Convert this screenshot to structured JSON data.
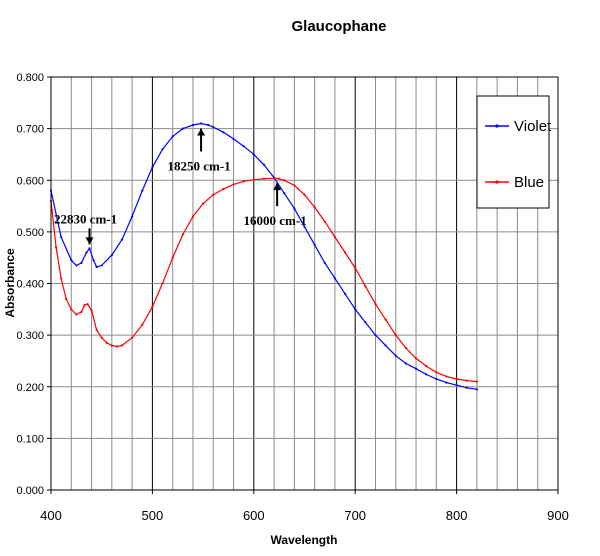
{
  "chart_data": {
    "type": "line",
    "title": "Glaucophane",
    "xlabel": "Wavelength",
    "ylabel": "Absorbance",
    "xlim": [
      400,
      900
    ],
    "ylim": [
      0,
      0.8
    ],
    "x_ticks": [
      "400",
      "500",
      "600",
      "700",
      "800",
      "900"
    ],
    "y_ticks": [
      "0.000",
      "0.100",
      "0.200",
      "0.300",
      "0.400",
      "0.500",
      "0.600",
      "0.700",
      "0.800"
    ],
    "grid": true,
    "legend_position": "top-right",
    "series": [
      {
        "name": "Violet",
        "color": "#0000ff",
        "x": [
          400,
          410,
          420,
          425,
          430,
          435,
          438,
          442,
          445,
          450,
          460,
          470,
          480,
          490,
          500,
          510,
          520,
          530,
          540,
          548,
          555,
          560,
          570,
          580,
          590,
          600,
          610,
          620,
          630,
          640,
          650,
          660,
          670,
          680,
          690,
          700,
          710,
          720,
          730,
          740,
          750,
          760,
          770,
          780,
          790,
          800,
          810,
          820
        ],
        "y": [
          0.58,
          0.49,
          0.445,
          0.435,
          0.44,
          0.46,
          0.468,
          0.445,
          0.432,
          0.435,
          0.455,
          0.485,
          0.53,
          0.58,
          0.625,
          0.66,
          0.685,
          0.7,
          0.707,
          0.71,
          0.707,
          0.703,
          0.693,
          0.68,
          0.666,
          0.65,
          0.63,
          0.605,
          0.575,
          0.545,
          0.51,
          0.475,
          0.44,
          0.41,
          0.38,
          0.35,
          0.325,
          0.3,
          0.28,
          0.26,
          0.245,
          0.235,
          0.224,
          0.215,
          0.208,
          0.203,
          0.198,
          0.195
        ]
      },
      {
        "name": "Blue",
        "color": "#ff0000",
        "x": [
          400,
          405,
          410,
          415,
          420,
          425,
          430,
          433,
          436,
          440,
          445,
          450,
          455,
          460,
          465,
          470,
          480,
          490,
          500,
          510,
          520,
          530,
          540,
          550,
          560,
          570,
          580,
          590,
          600,
          610,
          620,
          625,
          630,
          640,
          650,
          660,
          670,
          680,
          690,
          700,
          710,
          720,
          730,
          740,
          750,
          760,
          770,
          780,
          790,
          800,
          810,
          820
        ],
        "y": [
          0.56,
          0.47,
          0.41,
          0.37,
          0.35,
          0.34,
          0.345,
          0.358,
          0.36,
          0.348,
          0.31,
          0.295,
          0.285,
          0.28,
          0.278,
          0.28,
          0.295,
          0.32,
          0.355,
          0.4,
          0.45,
          0.495,
          0.53,
          0.555,
          0.572,
          0.583,
          0.592,
          0.598,
          0.601,
          0.603,
          0.604,
          0.603,
          0.6,
          0.59,
          0.572,
          0.548,
          0.52,
          0.49,
          0.46,
          0.43,
          0.395,
          0.36,
          0.33,
          0.3,
          0.275,
          0.255,
          0.24,
          0.228,
          0.22,
          0.215,
          0.212,
          0.21
        ]
      }
    ],
    "annotations": [
      {
        "text": "22830 cm-1",
        "x": 438,
        "y": 0.468,
        "label_position": "above"
      },
      {
        "text": "18250 cm-1",
        "x": 548,
        "y": 0.71,
        "label_position": "below"
      },
      {
        "text": "16000 cm-1",
        "x": 623,
        "y": 0.604,
        "label_position": "below"
      }
    ]
  }
}
